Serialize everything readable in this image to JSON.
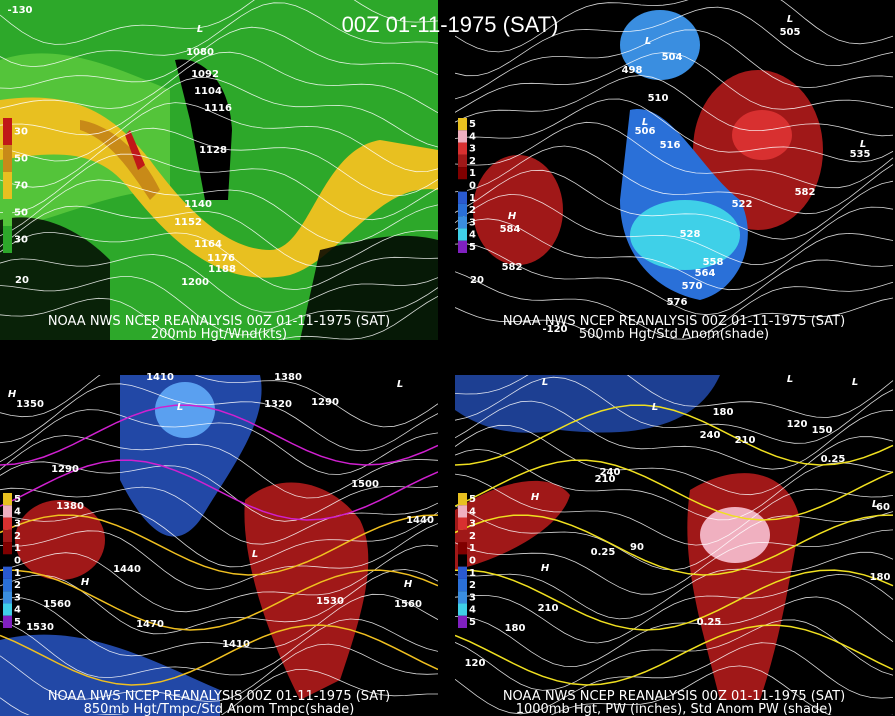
{
  "title": "00Z 01-11-1975 (SAT)",
  "panels": [
    {
      "caption": "NOAA NWS NCEP REANALYSIS 00Z 01-11-1975 (SAT)",
      "subtitle": "200mb Hgt/Wnd(kts)",
      "legend": [
        "30",
        "50",
        "70",
        "50",
        "30"
      ],
      "labels": [
        "1080",
        "1092",
        "1104",
        "1116",
        "1128",
        "1140",
        "1152",
        "1164",
        "1176",
        "1188",
        "1200",
        "L",
        "20",
        "-130"
      ]
    },
    {
      "caption": "NOAA NWS NCEP REANALYSIS 00Z 01-11-1975 (SAT)",
      "subtitle": "500mb Hgt/Std Anom(shade)",
      "legend": [
        "5",
        "4",
        "3",
        "2",
        "1",
        "0",
        "1",
        "2",
        "3",
        "4",
        "5"
      ],
      "labels": [
        "498",
        "504",
        "510",
        "506",
        "516",
        "522",
        "528",
        "558",
        "564",
        "570",
        "576",
        "582",
        "582",
        "505",
        "535",
        "584",
        "L",
        "L",
        "L",
        "H",
        "L",
        "20",
        "-120"
      ]
    },
    {
      "caption": "NOAA NWS NCEP REANALYSIS 00Z 01-11-1975 (SAT)",
      "subtitle": "850mb Hgt/Tmpc/Std Anom Tmpc(shade)",
      "legend": [
        "5",
        "4",
        "3",
        "2",
        "1",
        "0",
        "1",
        "2",
        "3",
        "4",
        "5"
      ],
      "labels": [
        "1410",
        "1380",
        "1350",
        "1320",
        "1290",
        "1290",
        "1380",
        "1440",
        "1470",
        "1410",
        "1530",
        "1560",
        "1500",
        "1440",
        "1530",
        "1560",
        "H",
        "L",
        "L",
        "H",
        "L",
        "H"
      ]
    },
    {
      "caption": "NOAA NWS NCEP REANALYSIS 00Z 01-11-1975 (SAT)",
      "subtitle": "1000mb Hgt, PW (inches), Std Anom PW (shade)",
      "legend": [
        "5",
        "4",
        "3",
        "2",
        "1",
        "0",
        "1",
        "2",
        "3",
        "4",
        "5"
      ],
      "labels": [
        "180",
        "210",
        "240",
        "210",
        "240",
        "90",
        "210",
        "180",
        "120",
        "150",
        "120",
        "180",
        "60",
        "0.25",
        "0.25",
        "0.25",
        "L",
        "L",
        "L",
        "L",
        "H",
        "L",
        "H"
      ]
    }
  ]
}
